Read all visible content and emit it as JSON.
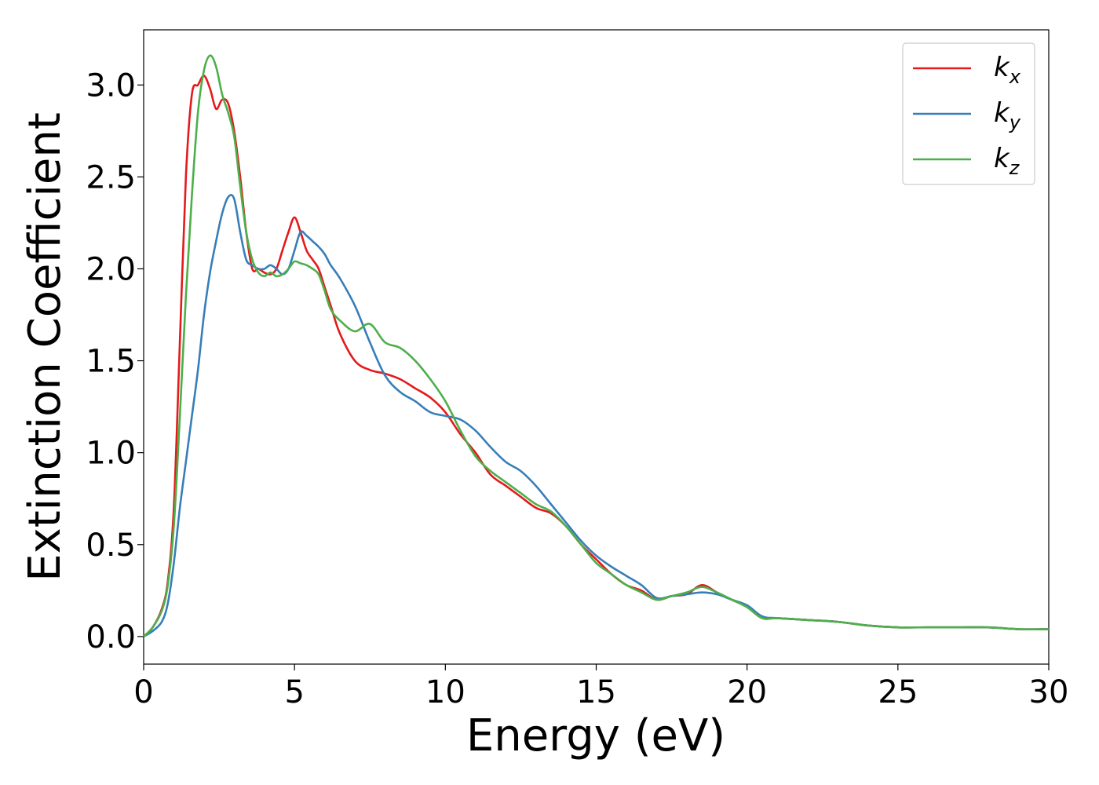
{
  "chart_data": {
    "type": "line",
    "xlabel": "Energy (eV)",
    "ylabel": "Extinction Coefficient",
    "xlim": [
      0,
      30
    ],
    "ylim": [
      -0.15,
      3.3
    ],
    "xticks": [
      0,
      5,
      10,
      15,
      20,
      25,
      30
    ],
    "xtick_labels": [
      "0",
      "5",
      "10",
      "15",
      "20",
      "25",
      "30"
    ],
    "yticks": [
      0.0,
      0.5,
      1.0,
      1.5,
      2.0,
      2.5,
      3.0
    ],
    "ytick_labels": [
      "0.0",
      "0.5",
      "1.0",
      "1.5",
      "2.0",
      "2.5",
      "3.0"
    ],
    "grid": false,
    "legend_position": "top-right",
    "series": [
      {
        "name": "kx",
        "base": "k",
        "sub": "x",
        "color": "#e41a1c",
        "x": [
          0,
          0.3,
          0.6,
          0.8,
          1.0,
          1.2,
          1.4,
          1.6,
          1.8,
          2.0,
          2.2,
          2.4,
          2.6,
          2.8,
          3.0,
          3.2,
          3.4,
          3.6,
          3.8,
          4.0,
          4.2,
          4.4,
          4.6,
          4.8,
          5.0,
          5.2,
          5.4,
          5.6,
          5.8,
          6.0,
          6.2,
          6.5,
          7.0,
          7.5,
          8.0,
          8.5,
          9.0,
          9.5,
          10.0,
          10.5,
          11.0,
          11.5,
          12.0,
          12.5,
          13.0,
          13.5,
          14.0,
          14.5,
          15.0,
          15.5,
          16.0,
          16.5,
          17.0,
          17.5,
          18.0,
          18.5,
          19.0,
          19.5,
          20.0,
          20.5,
          21.0,
          22.0,
          23.0,
          24.0,
          25.0,
          26.0,
          27.0,
          28.0,
          29.0,
          30.0
        ],
        "y": [
          0.0,
          0.05,
          0.15,
          0.3,
          0.7,
          1.6,
          2.5,
          2.95,
          3.0,
          3.05,
          2.98,
          2.87,
          2.92,
          2.9,
          2.75,
          2.5,
          2.2,
          2.0,
          2.0,
          1.98,
          1.97,
          2.0,
          2.1,
          2.2,
          2.28,
          2.2,
          2.1,
          2.05,
          2.0,
          1.9,
          1.8,
          1.65,
          1.5,
          1.45,
          1.43,
          1.4,
          1.35,
          1.3,
          1.22,
          1.1,
          1.0,
          0.88,
          0.82,
          0.76,
          0.7,
          0.67,
          0.6,
          0.5,
          0.42,
          0.34,
          0.28,
          0.25,
          0.2,
          0.22,
          0.23,
          0.28,
          0.24,
          0.2,
          0.16,
          0.1,
          0.1,
          0.09,
          0.08,
          0.06,
          0.05,
          0.05,
          0.05,
          0.05,
          0.04,
          0.04
        ]
      },
      {
        "name": "ky",
        "base": "k",
        "sub": "y",
        "color": "#377eb8",
        "x": [
          0,
          0.3,
          0.6,
          0.8,
          1.0,
          1.2,
          1.4,
          1.6,
          1.8,
          2.0,
          2.2,
          2.4,
          2.6,
          2.8,
          3.0,
          3.2,
          3.4,
          3.6,
          3.8,
          4.0,
          4.2,
          4.4,
          4.6,
          4.8,
          5.0,
          5.2,
          5.4,
          5.6,
          5.8,
          6.0,
          6.2,
          6.5,
          7.0,
          7.5,
          8.0,
          8.5,
          9.0,
          9.5,
          10.0,
          10.5,
          11.0,
          11.5,
          12.0,
          12.5,
          13.0,
          13.5,
          14.0,
          14.5,
          15.0,
          15.5,
          16.0,
          16.5,
          17.0,
          17.5,
          18.0,
          18.5,
          19.0,
          19.5,
          20.0,
          20.5,
          21.0,
          22.0,
          23.0,
          24.0,
          25.0,
          26.0,
          27.0,
          28.0,
          29.0,
          30.0
        ],
        "y": [
          0.0,
          0.03,
          0.08,
          0.18,
          0.4,
          0.7,
          0.95,
          1.2,
          1.45,
          1.75,
          1.98,
          2.15,
          2.3,
          2.39,
          2.38,
          2.2,
          2.05,
          2.02,
          2.0,
          2.0,
          2.02,
          2.0,
          1.97,
          2.0,
          2.1,
          2.2,
          2.18,
          2.15,
          2.12,
          2.08,
          2.02,
          1.95,
          1.8,
          1.6,
          1.42,
          1.33,
          1.28,
          1.22,
          1.2,
          1.18,
          1.12,
          1.03,
          0.95,
          0.9,
          0.82,
          0.72,
          0.62,
          0.52,
          0.44,
          0.38,
          0.33,
          0.28,
          0.21,
          0.22,
          0.23,
          0.24,
          0.23,
          0.2,
          0.17,
          0.11,
          0.1,
          0.09,
          0.08,
          0.06,
          0.05,
          0.05,
          0.05,
          0.05,
          0.04,
          0.04
        ]
      },
      {
        "name": "kz",
        "base": "k",
        "sub": "z",
        "color": "#4daf4a",
        "x": [
          0,
          0.3,
          0.6,
          0.8,
          1.0,
          1.2,
          1.4,
          1.6,
          1.8,
          2.0,
          2.2,
          2.4,
          2.6,
          2.8,
          3.0,
          3.2,
          3.4,
          3.6,
          3.8,
          4.0,
          4.2,
          4.4,
          4.6,
          4.8,
          5.0,
          5.2,
          5.4,
          5.6,
          5.8,
          6.0,
          6.2,
          6.5,
          7.0,
          7.5,
          8.0,
          8.5,
          9.0,
          9.5,
          10.0,
          10.5,
          11.0,
          11.5,
          12.0,
          12.5,
          13.0,
          13.5,
          14.0,
          14.5,
          15.0,
          15.5,
          16.0,
          16.5,
          17.0,
          17.5,
          18.0,
          18.5,
          19.0,
          19.5,
          20.0,
          20.5,
          21.0,
          22.0,
          23.0,
          24.0,
          25.0,
          26.0,
          27.0,
          28.0,
          29.0,
          30.0
        ],
        "y": [
          0.0,
          0.05,
          0.14,
          0.28,
          0.6,
          1.2,
          1.85,
          2.4,
          2.85,
          3.08,
          3.16,
          3.1,
          2.95,
          2.85,
          2.72,
          2.45,
          2.2,
          2.05,
          1.98,
          1.96,
          1.98,
          1.96,
          1.97,
          2.0,
          2.04,
          2.03,
          2.02,
          2.0,
          1.97,
          1.88,
          1.78,
          1.72,
          1.66,
          1.7,
          1.6,
          1.57,
          1.5,
          1.4,
          1.28,
          1.12,
          0.98,
          0.9,
          0.84,
          0.78,
          0.72,
          0.68,
          0.6,
          0.5,
          0.4,
          0.34,
          0.28,
          0.24,
          0.2,
          0.22,
          0.24,
          0.27,
          0.24,
          0.2,
          0.16,
          0.1,
          0.1,
          0.09,
          0.08,
          0.06,
          0.05,
          0.05,
          0.05,
          0.05,
          0.04,
          0.04
        ]
      }
    ]
  }
}
